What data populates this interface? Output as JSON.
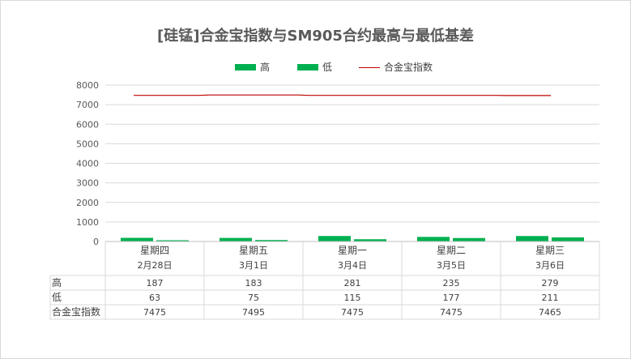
{
  "chart_data": {
    "type": "bar",
    "title": "[硅锰]合金宝指数与SM905合约最高与最低基差",
    "categories": [
      "星期四",
      "星期五",
      "星期一",
      "星期二",
      "星期三"
    ],
    "dates": [
      "2月28日",
      "3月1日",
      "3月4日",
      "3月5日",
      "3月6日"
    ],
    "series": [
      {
        "name": "高",
        "type": "bar",
        "color": "#00b050",
        "values": [
          187,
          183,
          281,
          235,
          279
        ]
      },
      {
        "name": "低",
        "type": "bar",
        "color": "#00b050",
        "values": [
          63,
          75,
          115,
          177,
          211
        ]
      },
      {
        "name": "合金宝指数",
        "type": "line",
        "color": "#c00000",
        "values": [
          7475,
          7495,
          7475,
          7475,
          7465
        ]
      }
    ],
    "ylim": [
      0,
      8000
    ],
    "yticks": [
      0,
      1000,
      2000,
      3000,
      4000,
      5000,
      6000,
      7000,
      8000
    ],
    "grid": true,
    "legend_position": "top-center"
  }
}
